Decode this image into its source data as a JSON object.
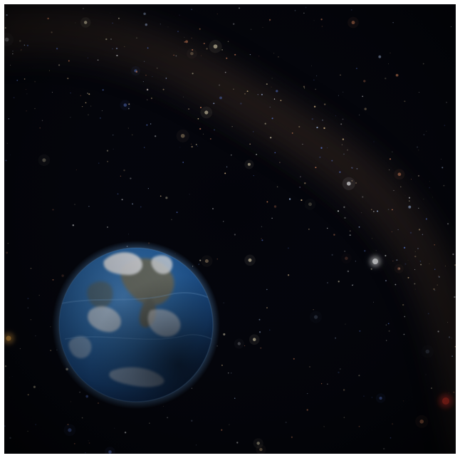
{
  "scene": {
    "background_color": "#03040a",
    "milky_way_color": "#3a2a20",
    "planet": {
      "name": "earth",
      "ocean_color": "#2f6fb0",
      "land_color": "#8a7a55",
      "cloud_color": "#f2f4f7",
      "atmosphere_color": "#6fb6ff"
    },
    "bright_stars": [
      {
        "kind": "white-star",
        "color": "#ffffff"
      },
      {
        "kind": "red-star",
        "color": "#ff3a2a"
      },
      {
        "kind": "orange-star",
        "color": "#ffb347"
      }
    ],
    "star_palette": [
      "#ffffff",
      "#bcd4ff",
      "#6f93ff",
      "#ffd9a0",
      "#ff9b6a",
      "#fff1c8"
    ]
  }
}
